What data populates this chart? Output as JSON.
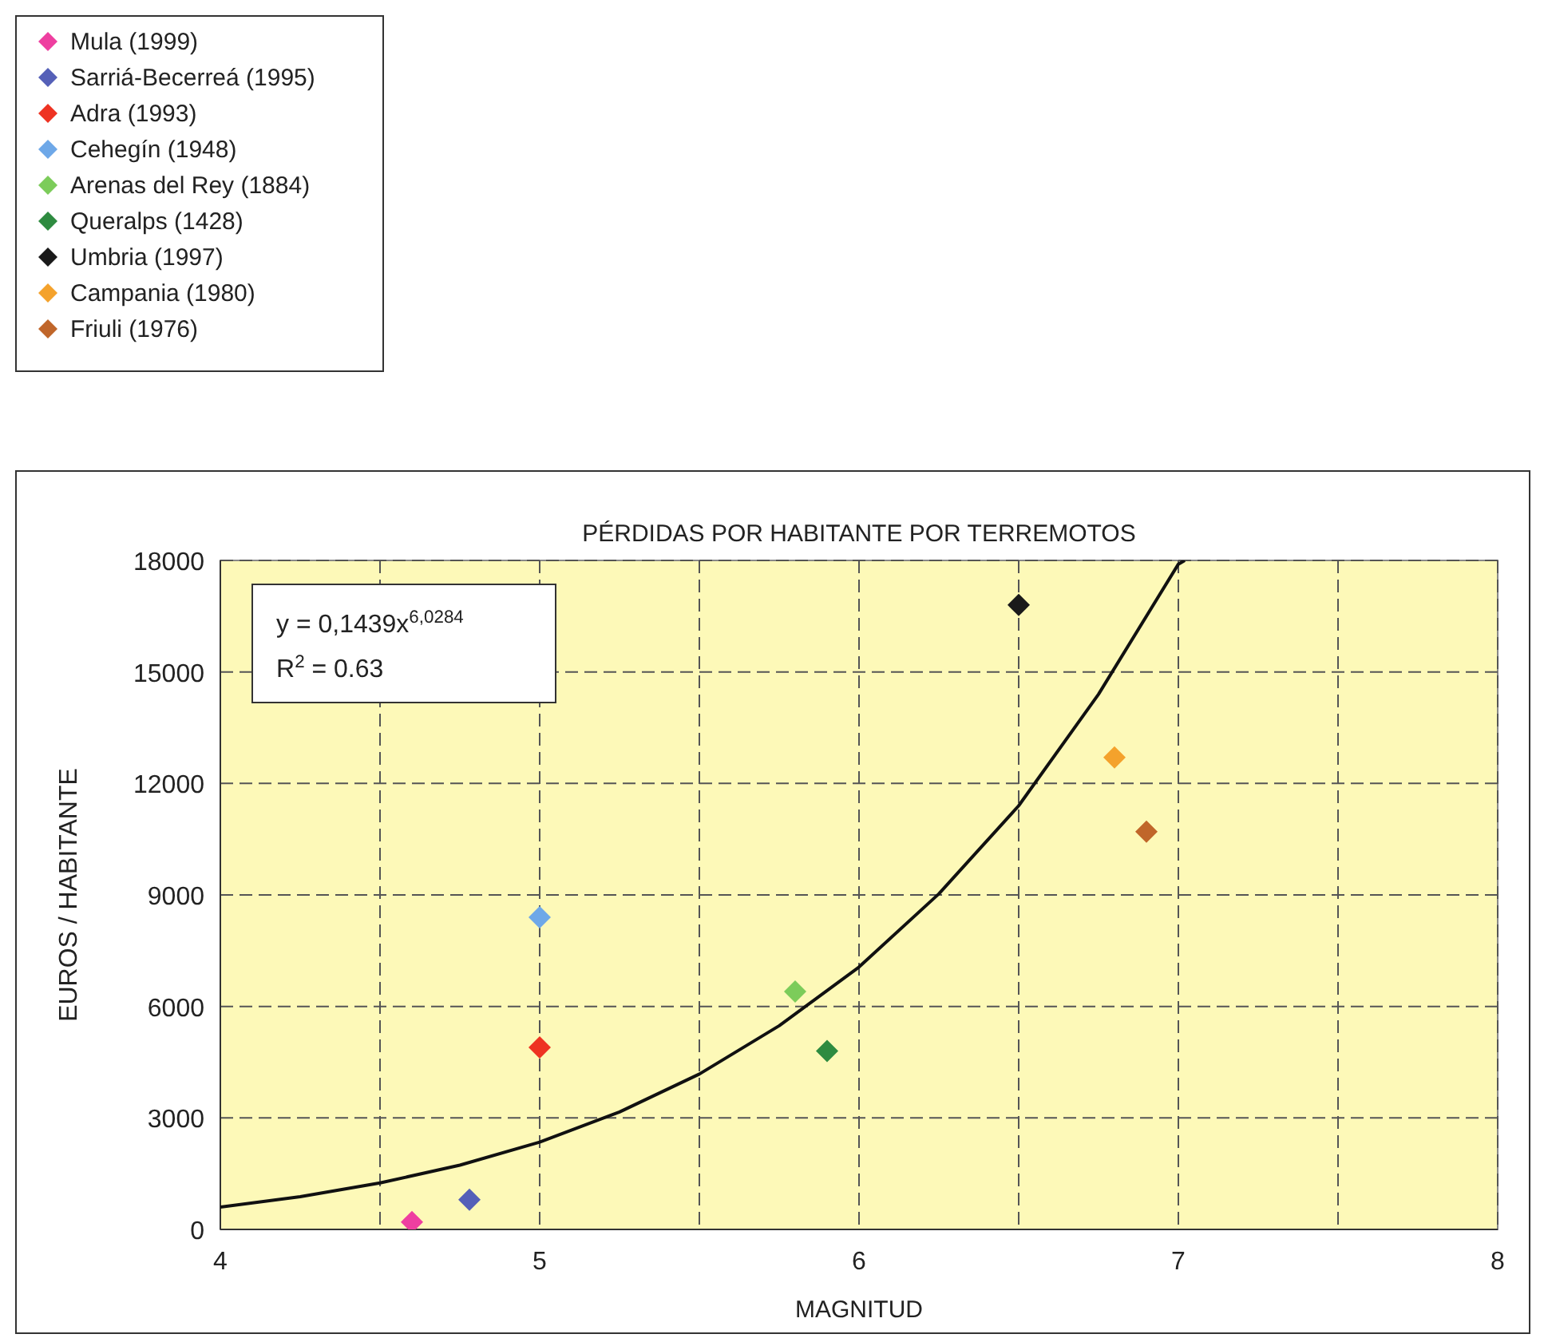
{
  "chart_data": {
    "type": "scatter",
    "title": "PÉRDIDAS POR HABITANTE POR TERREMOTOS",
    "xlabel": "MAGNITUD",
    "ylabel": "EUROS / HABITANTE",
    "xlim": [
      4,
      8
    ],
    "xticks": [
      4,
      5,
      6,
      7,
      8
    ],
    "ylim": [
      0,
      18000
    ],
    "yticks": [
      0,
      3000,
      6000,
      9000,
      12000,
      15000,
      18000
    ],
    "grid": true,
    "legend": "top left",
    "marker": "diamond",
    "annotations": [
      "y = 0,1439x$^{6,0284}$",
      "R$^{2}$ = 0.63"
    ],
    "series": [
      {
        "name": "Mula (1999)",
        "color": "#ee3fa0",
        "x": [
          4.6
        ],
        "values": [
          200
        ]
      },
      {
        "name": "Sarriá-Becerreá (1995)",
        "color": "#5560b8",
        "x": [
          4.78
        ],
        "values": [
          800
        ]
      },
      {
        "name": "Adra (1993)",
        "color": "#ee3322",
        "x": [
          5.0
        ],
        "values": [
          4900
        ]
      },
      {
        "name": "Cehegín (1948)",
        "color": "#6ea8e8",
        "x": [
          5.0
        ],
        "values": [
          8400
        ]
      },
      {
        "name": "Arenas del Rey (1884)",
        "color": "#7ccc5a",
        "x": [
          5.8
        ],
        "values": [
          6400
        ]
      },
      {
        "name": "Queralps (1428)",
        "color": "#2e8b40",
        "x": [
          5.9
        ],
        "values": [
          4800
        ]
      },
      {
        "name": "Umbria (1997)",
        "color": "#1a1a1a",
        "x": [
          6.5
        ],
        "values": [
          16800
        ]
      },
      {
        "name": "Campania (1980)",
        "color": "#f4a22c",
        "x": [
          6.8
        ],
        "values": [
          12700
        ]
      },
      {
        "name": "Friuli (1976)",
        "color": "#c0662a",
        "x": [
          6.9
        ],
        "values": [
          10700
        ]
      },
      {
        "type": "line",
        "color": "#111111",
        "marker": "none",
        "line_style": "solid",
        "x": [
          4,
          4.25,
          4.5,
          4.75,
          5,
          5.25,
          5.5,
          5.75,
          6,
          6.25,
          6.5,
          6.75,
          7,
          7.02
        ],
        "values": [
          600,
          880,
          1250,
          1730,
          2350,
          3160,
          4180,
          5480,
          7060,
          9030,
          11400,
          14400,
          17900,
          18000
        ]
      }
    ]
  }
}
